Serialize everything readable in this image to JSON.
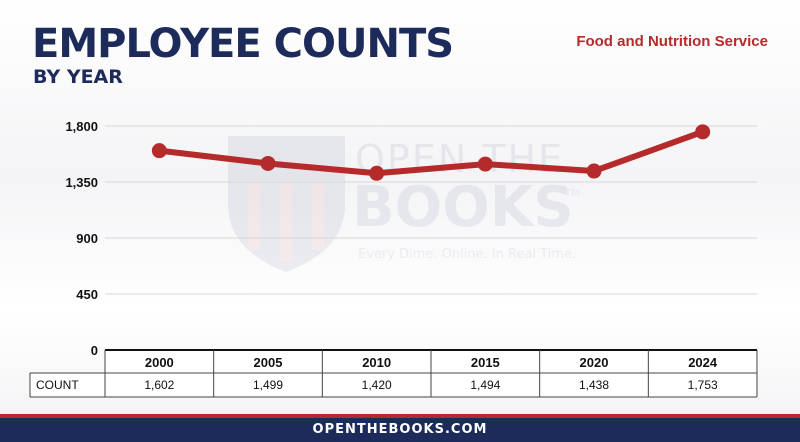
{
  "header": {
    "title": "EMPLOYEE COUNTS",
    "subtitle": "BY YEAR",
    "agency": "Food and Nutrition Service"
  },
  "watermark": {
    "brand_line1": "OPEN THE",
    "brand_line2": "BOOKS",
    "tm": "TM",
    "tagline": "Every Dime. Online. In Real Time."
  },
  "table": {
    "row_label": "COUNT"
  },
  "footer": {
    "url": "OPENTHEBOOKS.COM"
  },
  "colors": {
    "line": "#b52a2a",
    "navy": "#1c2b5a",
    "accent_red": "#b52a2a"
  },
  "chart_data": {
    "type": "line",
    "title": "EMPLOYEE COUNTS",
    "subtitle": "BY YEAR",
    "categories": [
      "2000",
      "2005",
      "2010",
      "2015",
      "2020",
      "2024"
    ],
    "series": [
      {
        "values": [
          1602,
          1499,
          1420,
          1494,
          1438,
          1753
        ],
        "value_labels": [
          "1,602",
          "1,499",
          "1,420",
          "1,494",
          "1,438",
          "1,753"
        ]
      }
    ],
    "yticks": [
      0,
      450,
      900,
      1350,
      1800
    ],
    "ytick_labels": [
      "0",
      "450",
      "900",
      "1,350",
      "1,800"
    ],
    "ylim": [
      0,
      1800
    ],
    "grid": true,
    "legend": "none"
  }
}
